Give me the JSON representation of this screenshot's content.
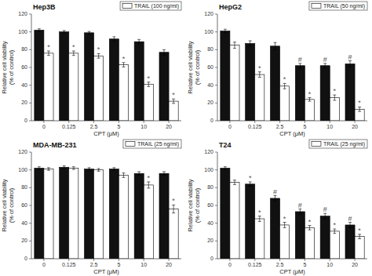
{
  "chart_data": [
    {
      "type": "bar",
      "title": "Hep3B",
      "xlabel": "CPT (μM)",
      "ylabel": "Relative cell viability\n(% of control)",
      "categories": [
        "0",
        "0.125",
        "2.5",
        "5",
        "10",
        "20"
      ],
      "series": [
        {
          "color": "#111111",
          "values": [
            102,
            100,
            99,
            92,
            89,
            77
          ],
          "errors": [
            1.5,
            1.5,
            1.5,
            2.5,
            2.5,
            3
          ]
        },
        {
          "name": "TRAIL (100 ng/ml)",
          "color": "#ffffff",
          "values": [
            76,
            76,
            73,
            63,
            41,
            22
          ],
          "errors": [
            2.5,
            2.5,
            2.5,
            2.5,
            2.5,
            2.5
          ],
          "marks": [
            "*",
            "*",
            "*",
            "*",
            "*",
            "*"
          ]
        }
      ],
      "ylim": [
        0,
        120
      ],
      "yticks": [
        0,
        20,
        40,
        60,
        80,
        100,
        120
      ],
      "grid": false,
      "legend": "upper right"
    },
    {
      "type": "bar",
      "title": "HepG2",
      "xlabel": "CPT (μM)",
      "ylabel": "Relative cell viability\n(% of control)",
      "categories": [
        "0",
        "0.125",
        "2.5",
        "5",
        "10",
        "20"
      ],
      "series": [
        {
          "color": "#111111",
          "values": [
            101,
            87,
            84,
            62,
            62,
            64
          ],
          "errors": [
            2,
            3,
            4,
            2.5,
            2.5,
            3.5
          ],
          "marks": [
            null,
            null,
            null,
            "#",
            "#",
            "#"
          ]
        },
        {
          "name": "TRAIL (50 ng/ml)",
          "color": "#ffffff",
          "values": [
            85,
            52,
            39,
            24,
            26,
            13
          ],
          "errors": [
            3.5,
            3,
            3,
            2,
            3,
            2.5
          ],
          "marks": [
            null,
            "*",
            "*",
            "*",
            "*",
            "*"
          ]
        }
      ],
      "ylim": [
        0,
        120
      ],
      "yticks": [
        0,
        20,
        40,
        60,
        80,
        100,
        120
      ],
      "grid": false,
      "legend": "upper right"
    },
    {
      "type": "bar",
      "title": "MDA-MB-231",
      "xlabel": "CPT (μM)",
      "ylabel": "Relative cell viability\n(% of control)",
      "categories": [
        "0",
        "0.125",
        "2.5",
        "5",
        "10",
        "20"
      ],
      "series": [
        {
          "color": "#111111",
          "values": [
            102,
            103,
            101,
            101,
            96,
            96
          ],
          "errors": [
            1.5,
            1.5,
            1.5,
            1.5,
            2,
            2
          ]
        },
        {
          "name": "TRAIL (25 ng/ml)",
          "color": "#ffffff",
          "values": [
            101,
            102,
            100,
            94,
            83,
            56
          ],
          "errors": [
            1.5,
            1.5,
            1.5,
            2.5,
            3.5,
            4.5
          ],
          "marks": [
            null,
            null,
            null,
            null,
            "*",
            "*"
          ]
        }
      ],
      "ylim": [
        0,
        120
      ],
      "yticks": [
        0,
        20,
        40,
        60,
        80,
        100,
        120
      ],
      "grid": false,
      "legend": "upper right"
    },
    {
      "type": "bar",
      "title": "T24",
      "xlabel": "CPT (μM)",
      "ylabel": "Relative cell viability\n(% of control)",
      "categories": [
        "0",
        "0.125",
        "2.5",
        "5",
        "10",
        "20"
      ],
      "series": [
        {
          "color": "#111111",
          "values": [
            102,
            84,
            68,
            53,
            48,
            38
          ],
          "errors": [
            1.5,
            2.5,
            3,
            3,
            3,
            3
          ],
          "marks": [
            null,
            "*",
            "#",
            "#",
            "#",
            "#"
          ]
        },
        {
          "name": "TRAIL (25 ng/ml)",
          "color": "#ffffff",
          "values": [
            86,
            45,
            38,
            35,
            31,
            25
          ],
          "errors": [
            2.5,
            3,
            3,
            2.5,
            2.5,
            2.5
          ],
          "marks": [
            null,
            "*",
            "*",
            "*",
            "*",
            "*"
          ]
        }
      ],
      "ylim": [
        0,
        120
      ],
      "yticks": [
        0,
        20,
        40,
        60,
        80,
        100,
        120
      ],
      "grid": false,
      "legend": "upper right"
    }
  ]
}
